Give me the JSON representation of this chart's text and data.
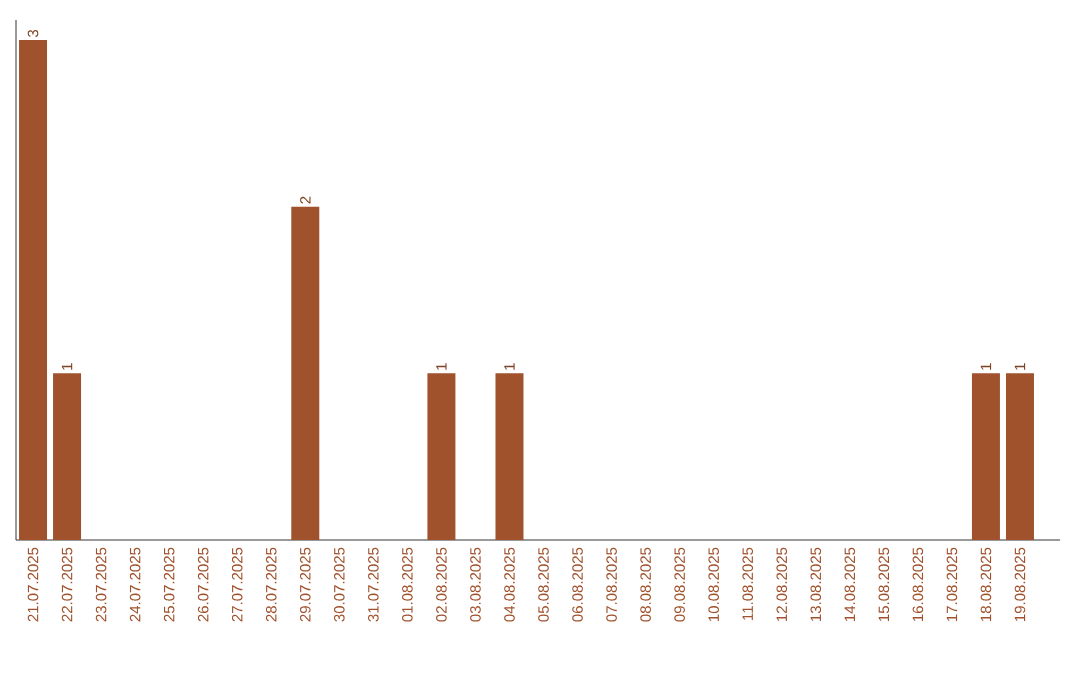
{
  "chart_data": {
    "type": "bar",
    "color": "#a0522d",
    "categories": [
      "21.07.2025",
      "22.07.2025",
      "23.07.2025",
      "24.07.2025",
      "25.07.2025",
      "26.07.2025",
      "27.07.2025",
      "28.07.2025",
      "29.07.2025",
      "30.07.2025",
      "31.07.2025",
      "01.08.2025",
      "02.08.2025",
      "03.08.2025",
      "04.08.2025",
      "05.08.2025",
      "06.08.2025",
      "07.08.2025",
      "08.08.2025",
      "09.08.2025",
      "10.08.2025",
      "11.08.2025",
      "12.08.2025",
      "13.08.2025",
      "14.08.2025",
      "15.08.2025",
      "16.08.2025",
      "17.08.2025",
      "18.08.2025",
      "19.08.2025"
    ],
    "values": [
      3,
      1,
      0,
      0,
      0,
      0,
      0,
      0,
      2,
      0,
      0,
      0,
      1,
      0,
      1,
      0,
      0,
      0,
      0,
      0,
      0,
      0,
      0,
      0,
      0,
      0,
      0,
      0,
      1,
      1
    ],
    "value_labels": [
      "3",
      "1",
      null,
      null,
      null,
      null,
      null,
      null,
      "2",
      null,
      null,
      null,
      "1",
      null,
      "1",
      null,
      null,
      null,
      null,
      null,
      null,
      null,
      null,
      null,
      null,
      null,
      null,
      null,
      "1",
      "1"
    ]
  }
}
